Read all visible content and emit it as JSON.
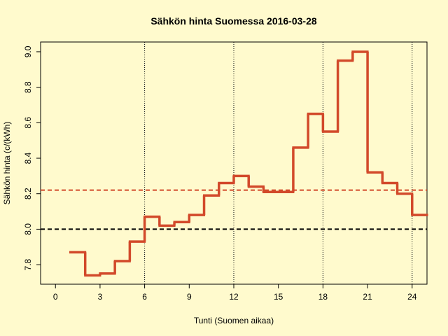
{
  "chart_data": {
    "type": "step",
    "title": "Sähkön hinta Suomessa 2016-03-28",
    "x_label": "Tunti (Suomen aikaa)",
    "y_label": "Sähkön hinta (c/(kWh)",
    "x": [
      1,
      2,
      3,
      4,
      5,
      6,
      7,
      8,
      9,
      10,
      11,
      12,
      13,
      14,
      15,
      16,
      17,
      18,
      19,
      20,
      21,
      22,
      23,
      24
    ],
    "series": [
      {
        "color": "#d2492a",
        "values": [
          7.87,
          7.74,
          7.75,
          7.82,
          7.93,
          8.07,
          8.02,
          8.04,
          8.08,
          8.19,
          8.26,
          8.3,
          8.24,
          8.21,
          8.21,
          8.46,
          8.65,
          8.55,
          8.95,
          9.0,
          8.32,
          8.26,
          8.2,
          8.08
        ]
      }
    ],
    "xlim": [
      -1,
      25
    ],
    "ylim": [
      7.69,
      9.055
    ],
    "xticks": [
      0,
      3,
      6,
      9,
      12,
      15,
      18,
      21,
      24
    ],
    "yticks": [
      7.8,
      {
        "value": 8,
        "label": "8.0"
      },
      8.2,
      8.4,
      8.6,
      8.8,
      {
        "value": 9,
        "label": "9.0"
      }
    ],
    "hlines": [
      {
        "value": 8,
        "color": "#000000"
      },
      {
        "value": 8.22,
        "color": "#d2492a"
      }
    ],
    "vlines": [
      6,
      12,
      18,
      24
    ]
  }
}
